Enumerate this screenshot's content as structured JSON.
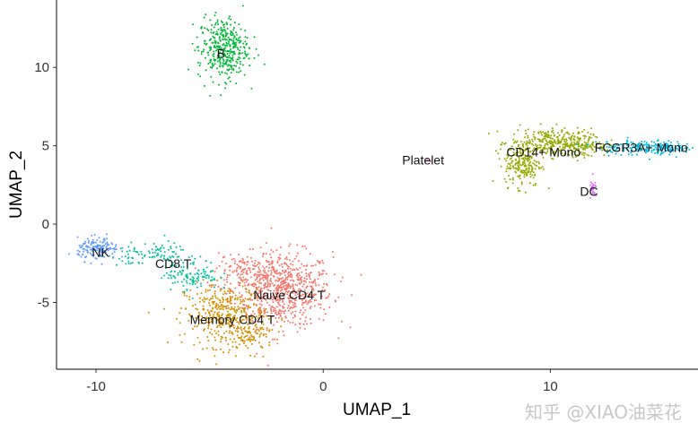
{
  "chart_data": {
    "type": "scatter",
    "title": "",
    "xlabel": "UMAP_1",
    "ylabel": "UMAP_2",
    "xlim": [
      -11.74,
      16.5
    ],
    "ylim": [
      -9.26,
      14.3
    ],
    "xticks": [
      -10,
      0,
      10
    ],
    "yticks": [
      -5,
      0,
      5,
      10
    ],
    "xtick_labels": [
      "-10",
      "0",
      "10"
    ],
    "ytick_labels": [
      "-5",
      "0",
      "5",
      "10"
    ],
    "grid": false,
    "legend": "none",
    "clusters": [
      {
        "name": "Naive CD4 T",
        "color": "#F8766D",
        "label_pos": [
          -1.5,
          -4.5
        ],
        "blobs": [
          [
            -1.8,
            -4.2,
            1.1,
            1.2,
            700
          ],
          [
            -3.6,
            -3.0,
            0.6,
            0.6,
            120
          ]
        ]
      },
      {
        "name": "Memory CD4 T",
        "color": "#D39200",
        "label_pos": [
          -4.0,
          -6.1
        ],
        "blobs": [
          [
            -4.3,
            -5.8,
            0.9,
            1.0,
            400
          ],
          [
            -3.2,
            -7.2,
            0.5,
            0.5,
            80
          ]
        ]
      },
      {
        "name": "CD14+ Mono",
        "color": "#93AA00",
        "label_pos": [
          9.7,
          4.6
        ],
        "blobs": [
          [
            10.0,
            5.2,
            0.9,
            0.45,
            300
          ],
          [
            8.8,
            3.8,
            0.4,
            0.7,
            200
          ],
          [
            11.5,
            5.0,
            0.5,
            0.35,
            100
          ]
        ]
      },
      {
        "name": "B",
        "color": "#00BA38",
        "label_pos": [
          -4.5,
          10.9
        ],
        "blobs": [
          [
            -4.4,
            11.2,
            0.55,
            1.0,
            380
          ]
        ]
      },
      {
        "name": "CD8 T",
        "color": "#00C19F",
        "label_pos": [
          -6.6,
          -2.5
        ],
        "blobs": [
          [
            -7.2,
            -1.8,
            0.6,
            0.3,
            60
          ],
          [
            -5.8,
            -3.2,
            0.6,
            0.5,
            120
          ],
          [
            -8.3,
            -2.1,
            0.5,
            0.3,
            30
          ]
        ]
      },
      {
        "name": "FCGR3A+ Mono",
        "color": "#00B9E3",
        "label_pos": [
          14.0,
          4.9
        ],
        "blobs": [
          [
            13.8,
            4.9,
            0.9,
            0.25,
            150
          ],
          [
            15.3,
            4.9,
            0.4,
            0.2,
            50
          ]
        ]
      },
      {
        "name": "NK",
        "color": "#619CFF",
        "label_pos": [
          -9.8,
          -1.8
        ],
        "blobs": [
          [
            -9.9,
            -1.6,
            0.45,
            0.35,
            150
          ]
        ]
      },
      {
        "name": "DC",
        "color": "#DB72FB",
        "label_pos": [
          11.7,
          2.1
        ],
        "blobs": [
          [
            11.9,
            2.2,
            0.08,
            0.3,
            25
          ]
        ]
      },
      {
        "name": "Platelet",
        "color": "#FF61C3",
        "label_pos": [
          4.4,
          4.1
        ],
        "blobs": [
          [
            4.6,
            4.1,
            0.1,
            0.1,
            3
          ]
        ]
      }
    ]
  },
  "watermark": "知乎 @XIAO油菜花"
}
